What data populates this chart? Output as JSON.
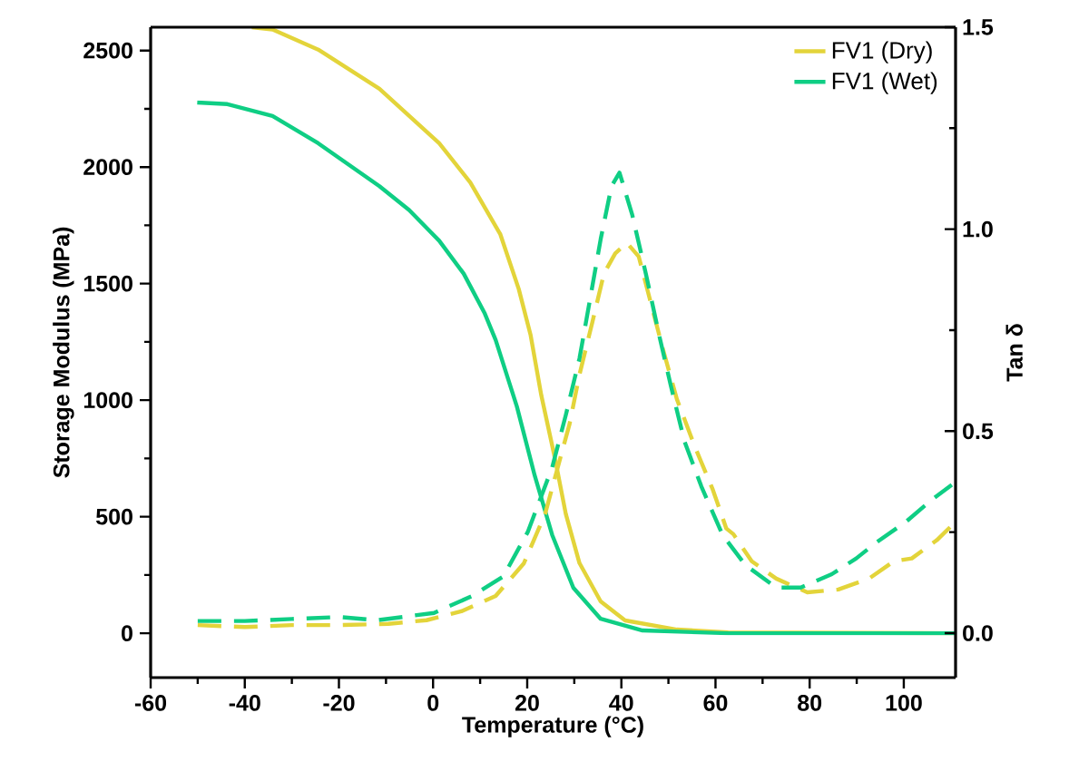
{
  "chart_data": {
    "type": "line",
    "xlabel": "Temperature (°C)",
    "ylabel": "Storage Modulus (MPa)",
    "y2label": "Tan δ",
    "xlim": [
      -60,
      111
    ],
    "xticks": [
      -60,
      -40,
      -20,
      0,
      20,
      40,
      60,
      80,
      100
    ],
    "ylim": [
      -190,
      2600
    ],
    "yticks": [
      0,
      500,
      1000,
      1500,
      2000,
      2500
    ],
    "y2lim": [
      -0.11,
      1.5
    ],
    "y2ticks": [
      {
        "value": 0,
        "label": "0.0"
      },
      {
        "value": 0.5,
        "label": "0.5"
      },
      {
        "value": 1,
        "label": "1.0"
      },
      {
        "value": 1.5,
        "label": "1.5"
      }
    ],
    "legend": "top right",
    "grid": false,
    "marker": "none",
    "series": [
      {
        "name": "FV1 (Dry)",
        "color": "#e3d43a",
        "line_style": "solid",
        "x": [
          -38.5,
          -34.1,
          -24.4,
          -11.4,
          1.3,
          7.9,
          14.3,
          18.2,
          20.7,
          23.0,
          25.9,
          28.2,
          31.1,
          35.6,
          40.8,
          51.8,
          62.7,
          111
        ],
        "values": [
          2600,
          2590,
          2504,
          2336,
          2102,
          1934,
          1711,
          1477,
          1281,
          1020,
          750,
          512,
          301,
          137,
          55,
          16,
          4,
          0
        ]
      },
      {
        "name": "FV1 (Wet)",
        "color": "#0fce84",
        "line_style": "solid",
        "x": [
          -50.1,
          -43.7,
          -34.1,
          -24.4,
          -11.4,
          -5.1,
          1.3,
          6.5,
          11.0,
          13.3,
          17.8,
          21.6,
          25.3,
          29.8,
          35.6,
          44.5,
          62.7,
          111
        ],
        "values": [
          2277,
          2270,
          2219,
          2102,
          1918,
          1816,
          1684,
          1543,
          1371,
          1258,
          973,
          676,
          422,
          195,
          62,
          12,
          0,
          0
        ]
      },
      {
        "color": "#e3d43a",
        "line_style": "dashed",
        "axis": "y2",
        "x": [
          -50,
          -40,
          -30,
          -20,
          -9.5,
          -1.4,
          6.0,
          13.3,
          19.3,
          23.8,
          29.0,
          31.1,
          33.8,
          36.3,
          38.7,
          41.2,
          43.7,
          46.0,
          48.9,
          51.8,
          55.7,
          59.4,
          62.3,
          63.8,
          67.7,
          72.9,
          79.5,
          86.1,
          92.6,
          97.9,
          101.7,
          107.0,
          110.5
        ],
        "values": [
          0.02,
          0.015,
          0.02,
          0.02,
          0.023,
          0.032,
          0.054,
          0.092,
          0.173,
          0.295,
          0.518,
          0.64,
          0.768,
          0.89,
          0.94,
          0.966,
          0.932,
          0.829,
          0.7,
          0.579,
          0.459,
          0.356,
          0.259,
          0.245,
          0.178,
          0.135,
          0.101,
          0.108,
          0.135,
          0.178,
          0.185,
          0.23,
          0.27
        ]
      },
      {
        "color": "#0fce84",
        "line_style": "dashed",
        "axis": "y2",
        "x": [
          -50,
          -40,
          -30,
          -20,
          -11.8,
          0.2,
          8.3,
          14.9,
          20.1,
          25.3,
          28.2,
          31.1,
          33.4,
          35.6,
          37.9,
          39.6,
          42.3,
          45.2,
          48.1,
          50.5,
          53.4,
          57.0,
          61.5,
          66.3,
          72.9,
          78.1,
          84.7,
          89.9,
          94.0,
          100.6,
          105.8,
          110.2
        ],
        "values": [
          0.03,
          0.03,
          0.035,
          0.04,
          0.032,
          0.05,
          0.092,
          0.14,
          0.25,
          0.41,
          0.54,
          0.68,
          0.83,
          0.975,
          1.106,
          1.14,
          1.036,
          0.89,
          0.734,
          0.613,
          0.475,
          0.363,
          0.243,
          0.169,
          0.113,
          0.113,
          0.146,
          0.185,
          0.223,
          0.277,
          0.329,
          0.367
        ]
      }
    ]
  }
}
